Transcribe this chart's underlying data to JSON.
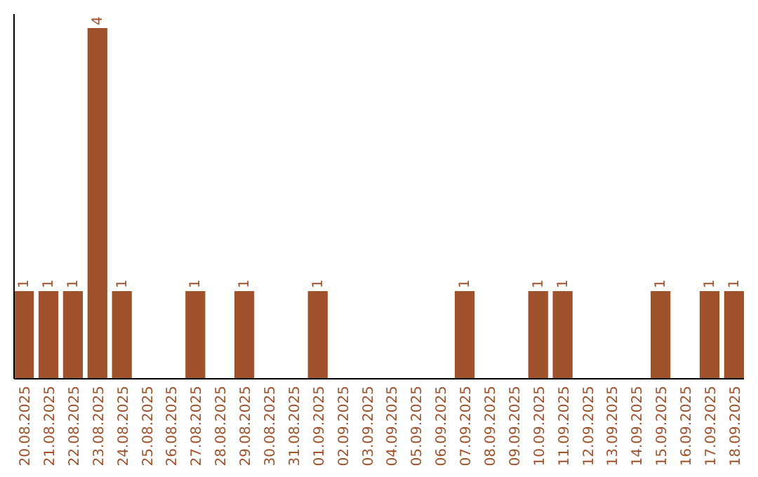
{
  "chart_data": {
    "type": "bar",
    "categories": [
      "20.08.2025",
      "21.08.2025",
      "22.08.2025",
      "23.08.2025",
      "24.08.2025",
      "25.08.2025",
      "26.08.2025",
      "27.08.2025",
      "28.08.2025",
      "29.08.2025",
      "30.08.2025",
      "31.08.2025",
      "01.09.2025",
      "02.09.2025",
      "03.09.2025",
      "04.09.2025",
      "05.09.2025",
      "06.09.2025",
      "07.09.2025",
      "08.09.2025",
      "09.09.2025",
      "10.09.2025",
      "11.09.2025",
      "12.09.2025",
      "13.09.2025",
      "14.09.2025",
      "15.09.2025",
      "16.09.2025",
      "17.09.2025",
      "18.09.2025"
    ],
    "values": [
      1,
      1,
      1,
      4,
      1,
      0,
      0,
      1,
      0,
      1,
      0,
      0,
      1,
      0,
      0,
      0,
      0,
      0,
      1,
      0,
      0,
      1,
      1,
      0,
      0,
      0,
      1,
      0,
      1,
      1
    ],
    "value_labels": [
      "1",
      "1",
      "1",
      "4",
      "1",
      null,
      null,
      "1",
      null,
      "1",
      null,
      null,
      "1",
      null,
      null,
      null,
      null,
      null,
      "1",
      null,
      null,
      "1",
      "1",
      null,
      null,
      null,
      "1",
      null,
      "1",
      "1"
    ],
    "color": "#a0522d"
  }
}
